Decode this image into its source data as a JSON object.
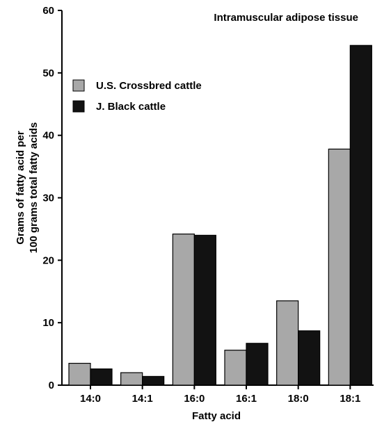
{
  "chart_data": {
    "type": "bar",
    "title": "Intramuscular adipose tissue",
    "xlabel": "Fatty acid",
    "ylabel": "Grams of fatty acid per 100 grams total fatty acids",
    "ylabel_lines": [
      "Grams of fatty acid per",
      "100 grams total fatty acids"
    ],
    "categories": [
      "14:0",
      "14:1",
      "16:0",
      "16:1",
      "18:0",
      "18:1"
    ],
    "series": [
      {
        "name": "U.S. Crossbred cattle",
        "color": "#a8a8a8",
        "values": [
          3.5,
          2.0,
          24.2,
          5.6,
          13.5,
          37.8
        ]
      },
      {
        "name": "J. Black cattle",
        "color": "#121212",
        "values": [
          2.6,
          1.4,
          24.0,
          6.7,
          8.7,
          54.4
        ]
      }
    ],
    "ylim": [
      0,
      60
    ],
    "yticks": [
      0,
      10,
      20,
      30,
      40,
      50,
      60
    ],
    "legend_position": "top-left",
    "grid": false
  }
}
